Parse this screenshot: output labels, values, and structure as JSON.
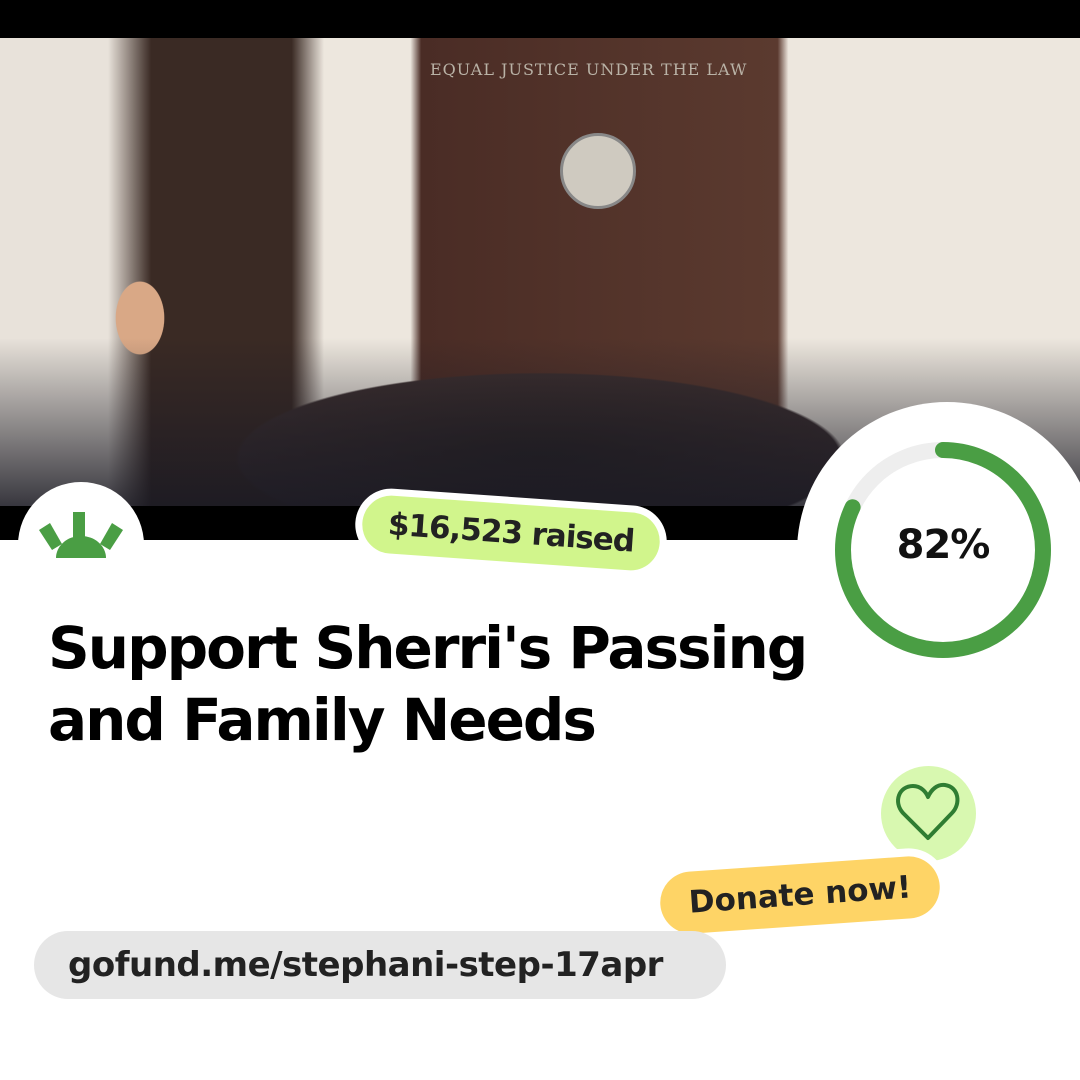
{
  "photo": {
    "inscription": "EQUAL JUSTICE UNDER THE LAW"
  },
  "raised": {
    "label": "$16,523 raised"
  },
  "progress": {
    "percent": 82,
    "label": "82%",
    "color": "#4a9e44",
    "track": "#eeeeee"
  },
  "campaign": {
    "title": "Support Sherri's Passing and Family Needs"
  },
  "donate": {
    "label": "Donate now!",
    "icon": "heart-icon"
  },
  "link": {
    "url": "gofund.me/stephani-step-17apr"
  },
  "colors": {
    "brand_green": "#4a9e44",
    "raised_bg": "#d1f58c",
    "donate_bg": "#fed466",
    "heart_bg": "#d8f8b0"
  }
}
